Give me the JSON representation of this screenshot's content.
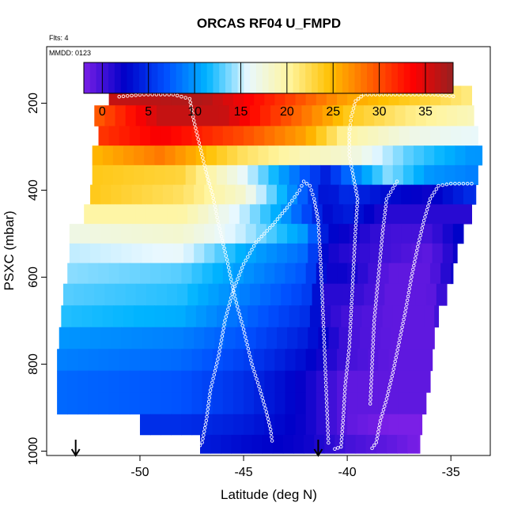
{
  "chart_data": {
    "type": "heatmap",
    "title": "ORCAS RF04 U_FMPD",
    "flights_note": "Flts: 4",
    "date_note": "MMDD: 0123",
    "xlabel": "Latitude (deg N)",
    "ylabel": "PSXC (mbar)",
    "xlim": [
      -54.5,
      -33.1
    ],
    "ylim": [
      1010,
      70
    ],
    "y_reversed": true,
    "x_ticks": [
      -50,
      -45,
      -40,
      -35
    ],
    "x_tick_labels": [
      "-50",
      "-45",
      "-40",
      "-35"
    ],
    "y_ticks": [
      200,
      400,
      600,
      800,
      1000
    ],
    "y_tick_labels": [
      "200",
      "400",
      "600",
      "800",
      "1000"
    ],
    "colorbar": {
      "min": -2,
      "max": 38,
      "ticks": [
        0,
        5,
        10,
        15,
        20,
        25,
        30,
        35
      ],
      "tick_labels": [
        "0",
        "5",
        "10",
        "15",
        "20",
        "25",
        "30",
        "35"
      ],
      "colors": [
        "#7a1fe6",
        "#0000c8",
        "#0050ff",
        "#00b4ff",
        "#e8f8ff",
        "#fff5a0",
        "#ffc000",
        "#ff6000",
        "#ff0000",
        "#962020"
      ]
    },
    "bins": [
      {
        "p": 180,
        "lat0": -51.5,
        "lat1": -34.0,
        "knots": [
          [
            -51.5,
            36
          ],
          [
            -47,
            37
          ],
          [
            -43,
            31
          ],
          [
            -40,
            26
          ],
          [
            -36,
            23
          ],
          [
            -34,
            21
          ]
        ]
      },
      {
        "p": 230,
        "lat0": -52.2,
        "lat1": -33.9,
        "knots": [
          [
            -52.2,
            29
          ],
          [
            -49,
            36
          ],
          [
            -46,
            36
          ],
          [
            -43,
            30
          ],
          [
            -40,
            24
          ],
          [
            -37,
            21
          ],
          [
            -34,
            19
          ]
        ]
      },
      {
        "p": 275,
        "lat0": -52.0,
        "lat1": -33.7,
        "knots": [
          [
            -52,
            31
          ],
          [
            -49,
            34
          ],
          [
            -45,
            30
          ],
          [
            -42,
            26
          ],
          [
            -40,
            20
          ],
          [
            -37,
            17
          ],
          [
            -34,
            16
          ]
        ]
      },
      {
        "p": 320,
        "lat0": -52.3,
        "lat1": -33.5,
        "knots": [
          [
            -52.3,
            25
          ],
          [
            -49,
            28
          ],
          [
            -45,
            22
          ],
          [
            -42,
            19
          ],
          [
            -40,
            18
          ],
          [
            -37,
            13
          ],
          [
            -34,
            10
          ]
        ]
      },
      {
        "p": 365,
        "lat0": -52.3,
        "lat1": -33.7,
        "knots": [
          [
            -52.3,
            24
          ],
          [
            -48,
            23
          ],
          [
            -45,
            16
          ],
          [
            -42,
            7
          ],
          [
            -41,
            4
          ],
          [
            -40,
            8
          ],
          [
            -38,
            14
          ],
          [
            -36,
            10
          ],
          [
            -34,
            9
          ]
        ]
      },
      {
        "p": 410,
        "lat0": -52.4,
        "lat1": -33.8,
        "knots": [
          [
            -52.4,
            24
          ],
          [
            -48,
            22
          ],
          [
            -45,
            18
          ],
          [
            -43,
            11
          ],
          [
            -41,
            3
          ],
          [
            -40,
            5
          ],
          [
            -38,
            3
          ],
          [
            -36,
            2
          ],
          [
            -34,
            5
          ]
        ]
      },
      {
        "p": 455,
        "lat0": -52.7,
        "lat1": -34.0,
        "knots": [
          [
            -52.7,
            20
          ],
          [
            -48,
            20
          ],
          [
            -45,
            15
          ],
          [
            -43,
            10
          ],
          [
            -41,
            3
          ],
          [
            -40,
            4
          ],
          [
            -38,
            1
          ],
          [
            -36,
            1
          ],
          [
            -34,
            1
          ]
        ]
      },
      {
        "p": 500,
        "lat0": -53.4,
        "lat1": -34.4,
        "knots": [
          [
            -53.4,
            17
          ],
          [
            -48,
            18
          ],
          [
            -45,
            15
          ],
          [
            -42,
            10
          ],
          [
            -41,
            3
          ],
          [
            -40,
            2
          ],
          [
            -38,
            0
          ],
          [
            -36,
            0
          ],
          [
            -34.4,
            3
          ]
        ]
      },
      {
        "p": 545,
        "lat0": -53.4,
        "lat1": -34.7,
        "knots": [
          [
            -53.4,
            15
          ],
          [
            -48,
            16
          ],
          [
            -45,
            11
          ],
          [
            -42,
            8
          ],
          [
            -41,
            2
          ],
          [
            -40,
            1
          ],
          [
            -38,
            0
          ],
          [
            -36,
            -1
          ],
          [
            -34.7,
            2
          ]
        ]
      },
      {
        "p": 590,
        "lat0": -53.5,
        "lat1": -34.9,
        "knots": [
          [
            -53.5,
            14
          ],
          [
            -48,
            13
          ],
          [
            -45,
            10
          ],
          [
            -42,
            7
          ],
          [
            -41,
            2
          ],
          [
            -40,
            2
          ],
          [
            -38,
            -1
          ],
          [
            -36,
            -1
          ],
          [
            -34.9,
            2
          ]
        ]
      },
      {
        "p": 640,
        "lat0": -53.7,
        "lat1": -35.2,
        "knots": [
          [
            -53.7,
            13
          ],
          [
            -48,
            12
          ],
          [
            -45,
            9
          ],
          [
            -42,
            6
          ],
          [
            -41,
            1
          ],
          [
            -40,
            1
          ],
          [
            -38,
            -1
          ],
          [
            -36,
            -1
          ],
          [
            -35.2,
            1
          ]
        ]
      },
      {
        "p": 690,
        "lat0": -53.8,
        "lat1": -35.6,
        "knots": [
          [
            -53.8,
            12
          ],
          [
            -48,
            11
          ],
          [
            -45,
            8
          ],
          [
            -42,
            5
          ],
          [
            -41,
            1
          ],
          [
            -40,
            0
          ],
          [
            -38,
            -1
          ],
          [
            -36,
            -1
          ],
          [
            -35.6,
            0
          ]
        ]
      },
      {
        "p": 740,
        "lat0": -53.9,
        "lat1": -35.8,
        "knots": [
          [
            -53.9,
            10
          ],
          [
            -48,
            9
          ],
          [
            -45,
            7
          ],
          [
            -42,
            4
          ],
          [
            -40,
            0
          ],
          [
            -38,
            -1
          ],
          [
            -36,
            -1
          ]
        ]
      },
      {
        "p": 790,
        "lat0": -54.0,
        "lat1": -35.9,
        "knots": [
          [
            -54,
            9
          ],
          [
            -48,
            8
          ],
          [
            -45,
            6
          ],
          [
            -42,
            3
          ],
          [
            -40,
            0
          ],
          [
            -38,
            -1
          ],
          [
            -36,
            -1
          ]
        ]
      },
      {
        "p": 840,
        "lat0": -54.0,
        "lat1": -36.0,
        "knots": [
          [
            -54,
            8
          ],
          [
            -48,
            7
          ],
          [
            -45,
            5
          ],
          [
            -42,
            2
          ],
          [
            -40,
            -1
          ],
          [
            -38,
            -1
          ],
          [
            -36,
            -1
          ]
        ]
      },
      {
        "p": 890,
        "lat0": -54.0,
        "lat1": -36.2,
        "knots": [
          [
            -54,
            8
          ],
          [
            -48,
            7
          ],
          [
            -45,
            5
          ],
          [
            -42,
            2
          ],
          [
            -40,
            -1
          ],
          [
            -38,
            -1
          ],
          [
            -36.2,
            -1
          ]
        ]
      },
      {
        "p": 940,
        "lat0": -50.0,
        "lat1": -36.4,
        "knots": [
          [
            -50,
            5
          ],
          [
            -48,
            5
          ],
          [
            -45,
            4
          ],
          [
            -42,
            2
          ],
          [
            -40,
            -1
          ],
          [
            -38,
            -2
          ],
          [
            -36.4,
            -2
          ]
        ]
      },
      {
        "p": 985,
        "lat0": -47.1,
        "lat1": -36.5,
        "knots": [
          [
            -47.1,
            4
          ],
          [
            -45,
            3
          ],
          [
            -42,
            2
          ],
          [
            -40,
            0
          ],
          [
            -38,
            -1
          ],
          [
            -36.5,
            -2
          ]
        ]
      }
    ],
    "overlay_tracks": [
      [
        [
          -51.0,
          185
        ],
        [
          -49.8,
          180
        ],
        [
          -48.4,
          180
        ],
        [
          -47.6,
          190
        ],
        [
          -47.4,
          240
        ],
        [
          -47.1,
          300
        ],
        [
          -46.8,
          360
        ],
        [
          -46.5,
          410
        ],
        [
          -46.2,
          480
        ],
        [
          -45.8,
          560
        ],
        [
          -45.4,
          650
        ],
        [
          -45.0,
          720
        ],
        [
          -44.6,
          800
        ],
        [
          -44.2,
          860
        ],
        [
          -43.9,
          910
        ],
        [
          -43.7,
          950
        ],
        [
          -43.6,
          985
        ]
      ],
      [
        [
          -47.3,
          1000
        ],
        [
          -47.0,
          980
        ],
        [
          -46.8,
          930
        ],
        [
          -46.6,
          860
        ],
        [
          -46.2,
          780
        ],
        [
          -45.9,
          700
        ],
        [
          -45.5,
          630
        ],
        [
          -45.0,
          570
        ],
        [
          -44.4,
          520
        ],
        [
          -43.6,
          480
        ],
        [
          -42.9,
          440
        ],
        [
          -42.3,
          400
        ],
        [
          -42.1,
          380
        ],
        [
          -41.8,
          390
        ],
        [
          -41.6,
          420
        ],
        [
          -41.4,
          470
        ],
        [
          -41.3,
          550
        ],
        [
          -41.2,
          650
        ],
        [
          -41.1,
          760
        ],
        [
          -41.0,
          880
        ],
        [
          -40.9,
          990
        ]
      ],
      [
        [
          -40.6,
          995
        ],
        [
          -40.3,
          990
        ],
        [
          -40.2,
          930
        ],
        [
          -40.1,
          850
        ],
        [
          -39.9,
          760
        ],
        [
          -39.8,
          670
        ],
        [
          -39.7,
          580
        ],
        [
          -39.6,
          490
        ],
        [
          -39.5,
          420
        ],
        [
          -39.7,
          370
        ],
        [
          -39.9,
          320
        ],
        [
          -39.9,
          270
        ],
        [
          -39.8,
          230
        ],
        [
          -39.6,
          195
        ],
        [
          -39.2,
          180
        ],
        [
          -37.5,
          180
        ],
        [
          -35.8,
          180
        ],
        [
          -34.7,
          185
        ]
      ],
      [
        [
          -34.0,
          385
        ],
        [
          -35.0,
          385
        ],
        [
          -35.6,
          390
        ],
        [
          -36.0,
          420
        ],
        [
          -36.3,
          470
        ],
        [
          -36.6,
          530
        ],
        [
          -36.9,
          600
        ],
        [
          -37.2,
          680
        ],
        [
          -37.5,
          750
        ],
        [
          -37.8,
          820
        ],
        [
          -38.1,
          880
        ],
        [
          -38.4,
          930
        ],
        [
          -38.6,
          980
        ],
        [
          -38.9,
          1000
        ]
      ],
      [
        [
          -37.6,
          380
        ],
        [
          -38.1,
          420
        ],
        [
          -38.3,
          500
        ],
        [
          -38.5,
          600
        ],
        [
          -38.7,
          700
        ],
        [
          -38.8,
          800
        ],
        [
          -38.9,
          900
        ]
      ]
    ],
    "markers": [
      {
        "x": -53.1,
        "type": "down-arrow"
      },
      {
        "x": -41.4,
        "type": "down-arrow"
      }
    ]
  }
}
